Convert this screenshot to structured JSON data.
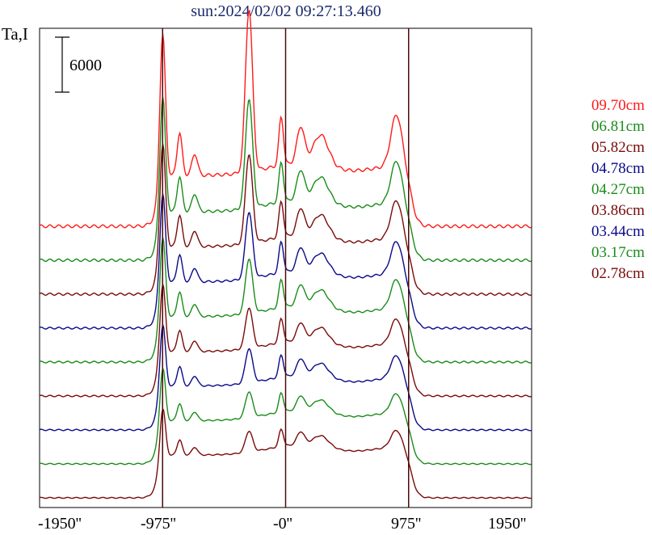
{
  "chart_data": {
    "type": "line",
    "title": "sun:2024/02/02 09:27:13.460",
    "ylabel": "Ta,I",
    "scale_bar_label": "6000",
    "x_ticks": [
      "-1950''",
      "-975''",
      "-0''",
      "975''",
      "1950''"
    ],
    "xlim": [
      -1950,
      1950
    ],
    "vertical_markers": [
      -975,
      0,
      975
    ],
    "series": [
      {
        "name": "09.70cm",
        "color": "#ff1a1a",
        "offset": 9,
        "amp": 1.0
      },
      {
        "name": "06.81cm",
        "color": "#1a8c1a",
        "offset": 8,
        "amp": 0.82
      },
      {
        "name": "05.82cm",
        "color": "#7a0a0a",
        "offset": 7,
        "amp": 0.74
      },
      {
        "name": "04.78cm",
        "color": "#0a0a88",
        "offset": 6,
        "amp": 0.64
      },
      {
        "name": "04.27cm",
        "color": "#1a8c1a",
        "offset": 5,
        "amp": 0.58
      },
      {
        "name": "03.86cm",
        "color": "#7a0a0a",
        "offset": 4,
        "amp": 0.5
      },
      {
        "name": "03.44cm",
        "color": "#0a0a88",
        "offset": 3,
        "amp": 0.46
      },
      {
        "name": "03.17cm",
        "color": "#1a8c1a",
        "offset": 2,
        "amp": 0.4
      },
      {
        "name": "02.78cm",
        "color": "#7a0a0a",
        "offset": 1,
        "amp": 0.36
      }
    ]
  }
}
